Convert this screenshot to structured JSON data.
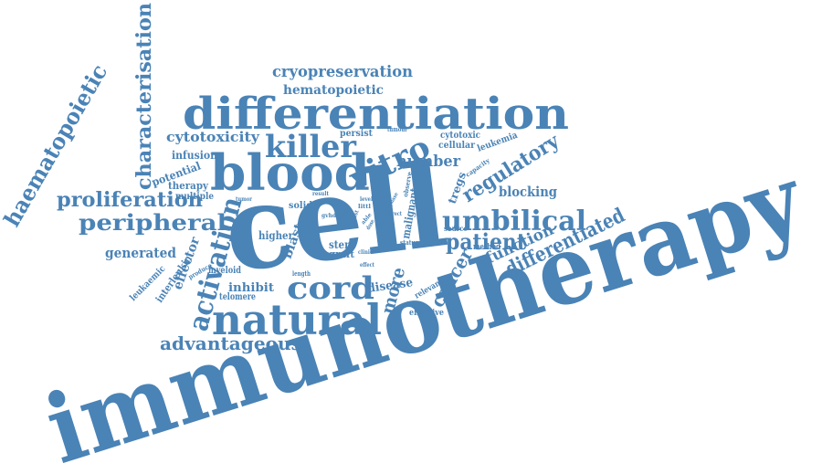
{
  "palette": {
    "word_color": "#4a83b6",
    "background": "#ffffff"
  },
  "words": {
    "immunotherapy": "immunotherapy",
    "cell": "cell",
    "differentiation": "differentiation",
    "blood": "blood",
    "natural": "natural",
    "cord": "cord",
    "killer": "killer",
    "umbilical": "umbilical",
    "peripheral": "peripheral",
    "proliferation": "proliferation",
    "haematopoietic": "haematopoietic",
    "characterisation": "characterisation",
    "cryopreservation": "cryopreservation",
    "hematopoietic": "hematopoietic",
    "vitro": "vitro",
    "activation": "activation",
    "regulatory": "regulatory",
    "patient": "patient",
    "differentiated": "differentiated",
    "advantageous": "advantageous",
    "cytotoxicity": "cytotoxicity",
    "number": "number",
    "blocking": "blocking",
    "function": "function",
    "cancer": "cancer",
    "generated": "generated",
    "more": "more",
    "stem": "stem",
    "effector": "effector",
    "potential": "potential",
    "infusion": "infusion",
    "inhibit": "inhibit",
    "higher": "higher",
    "blast": "blast",
    "malignant": "malignant",
    "tregs": "tregs",
    "disease": "disease",
    "persist": "persist",
    "cytotoxic": "cytotoxic",
    "cellular": "cellular",
    "leukemia": "leukemia",
    "therapy": "therapy",
    "multiple": "multiple",
    "solid": "solid",
    "graft": "graft",
    "myeloid": "myeloid",
    "telomere": "telomere",
    "interleukin": "interleukin",
    "leukaemic": "leukaemic",
    "produce": "produce",
    "relevant": "relevant",
    "effective": "effective",
    "method": "method",
    "source": "source",
    "status": "status",
    "length": "length",
    "observe": "observe",
    "capacity": "capacity",
    "tumour": "tumour",
    "tumor": "tumor",
    "result": "result",
    "level": "level",
    "chuk": "chuk",
    "able": "able",
    "gvhd": "gvhd",
    "host": "host",
    "dose": "dose",
    "clinic": "clinic",
    "direct": "direct",
    "effect": "effect",
    "littl": "littl",
    "phase": "phase"
  }
}
